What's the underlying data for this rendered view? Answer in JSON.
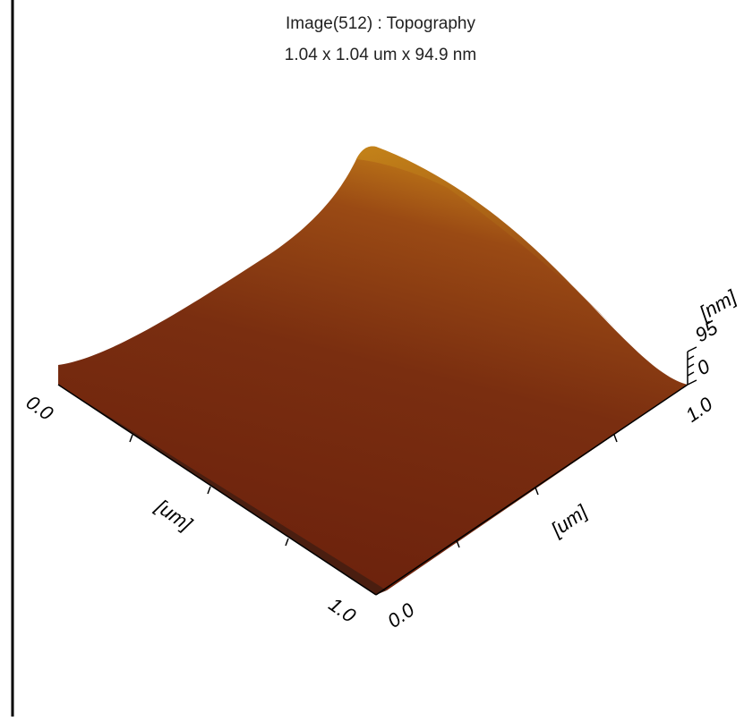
{
  "header": {
    "title": "Image(512) : Topography",
    "subtitle": "1.04 x 1.04 um x 94.9 nm"
  },
  "axes": {
    "x": {
      "label": "[um]",
      "start": "0.0",
      "end": "1.0"
    },
    "y": {
      "label": "[um]",
      "start": "0.0",
      "end": "1.0"
    },
    "z": {
      "label": "[nm]",
      "top": "95",
      "bottom": "0"
    }
  }
}
